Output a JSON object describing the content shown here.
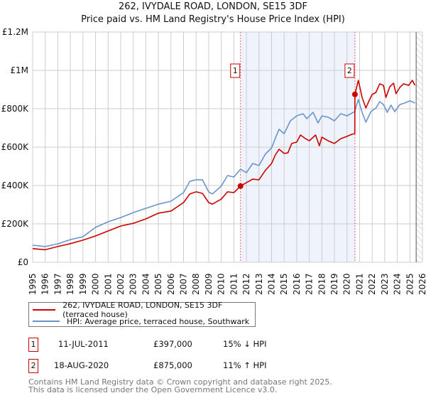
{
  "title": "262, IVYDALE ROAD, LONDON, SE15 3DF",
  "subtitle": "Price paid vs. HM Land Registry's House Price Index (HPI)",
  "colors": {
    "property": "#cc0000",
    "hpi": "#6b93cf",
    "shade": "#eef3fc",
    "grid": "#cccccc"
  },
  "chart_data": {
    "type": "line",
    "title": "262, IVYDALE ROAD, LONDON, SE15 3DF",
    "xlabel": "",
    "ylabel": "",
    "xlim": [
      1995,
      2026
    ],
    "ylim": [
      0,
      1200000
    ],
    "grid": true,
    "x_ticks": [
      "1995",
      "1996",
      "1997",
      "1998",
      "1999",
      "2000",
      "2001",
      "2002",
      "2003",
      "2004",
      "2005",
      "2006",
      "2007",
      "2008",
      "2009",
      "2010",
      "2011",
      "2012",
      "2013",
      "2014",
      "2015",
      "2016",
      "2017",
      "2018",
      "2019",
      "2020",
      "2021",
      "2022",
      "2023",
      "2024",
      "2025",
      "2026"
    ],
    "y_ticks": [
      {
        "v": 0,
        "label": "£0"
      },
      {
        "v": 200000,
        "label": "£200K"
      },
      {
        "v": 400000,
        "label": "£400K"
      },
      {
        "v": 600000,
        "label": "£600K"
      },
      {
        "v": 800000,
        "label": "£800K"
      },
      {
        "v": 1000000,
        "label": "£1M"
      },
      {
        "v": 1200000,
        "label": "£1.2M"
      }
    ],
    "shaded_range": [
      2011.53,
      2020.63
    ],
    "forecast_from": 2025.5,
    "series": [
      {
        "name": "262, IVYDALE ROAD, LONDON, SE15 3DF (terraced house)",
        "color": "#cc0000",
        "x": [
          1995,
          1996,
          1997,
          1998,
          1999,
          2000,
          2001,
          2002,
          2003,
          2004,
          2005,
          2006,
          2007,
          2007.5,
          2008,
          2008.5,
          2009,
          2009.3,
          2010,
          2010.5,
          2011,
          2011.53,
          2012,
          2012.5,
          2013,
          2013.5,
          2014,
          2014.3,
          2014.6,
          2015,
          2015.3,
          2015.6,
          2016,
          2016.3,
          2016.7,
          2017,
          2017.5,
          2017.8,
          2018,
          2018.5,
          2019,
          2019.5,
          2020,
          2020.4,
          2020.62,
          2020.63,
          2020.9,
          2021.2,
          2021.5,
          2021.8,
          2022,
          2022.3,
          2022.6,
          2022.9,
          2023.1,
          2023.4,
          2023.7,
          2023.9,
          2024.2,
          2024.5,
          2024.9,
          2025.2,
          2025.4
        ],
        "y": [
          71000,
          65000,
          82000,
          97000,
          115000,
          137000,
          163000,
          189000,
          203000,
          226000,
          256000,
          267000,
          311000,
          356000,
          367000,
          359000,
          311000,
          303000,
          329000,
          367000,
          363000,
          397000,
          415000,
          433000,
          430000,
          478000,
          515000,
          559000,
          589000,
          567000,
          570000,
          619000,
          626000,
          663000,
          644000,
          633000,
          663000,
          607000,
          652000,
          633000,
          619000,
          644000,
          656000,
          667000,
          670000,
          875000,
          948000,
          859000,
          804000,
          848000,
          874000,
          885000,
          930000,
          922000,
          859000,
          915000,
          933000,
          878000,
          911000,
          930000,
          922000,
          948000,
          922000
        ]
      },
      {
        "name": "HPI: Average price, terraced house, Southwark",
        "color": "#6b93cf",
        "x": [
          1995,
          1996,
          1997,
          1998,
          1999,
          2000,
          2001,
          2002,
          2003,
          2004,
          2005,
          2006,
          2007,
          2007.5,
          2008,
          2008.5,
          2009,
          2009.3,
          2010,
          2010.5,
          2011,
          2011.53,
          2012,
          2012.5,
          2013,
          2013.5,
          2014,
          2014.4,
          2014.6,
          2015,
          2015.5,
          2016,
          2016.5,
          2016.8,
          2017.3,
          2017.7,
          2018,
          2018.5,
          2019,
          2019.5,
          2020,
          2020.6,
          2020.9,
          2021.2,
          2021.5,
          2021.9,
          2022.3,
          2022.6,
          2022.9,
          2023.2,
          2023.5,
          2023.8,
          2024.2,
          2024.6,
          2025,
          2025.4
        ],
        "y": [
          89000,
          82000,
          96000,
          118000,
          133000,
          182000,
          211000,
          233000,
          259000,
          281000,
          303000,
          318000,
          363000,
          422000,
          430000,
          430000,
          367000,
          356000,
          397000,
          452000,
          444000,
          485000,
          467000,
          515000,
          504000,
          563000,
          596000,
          663000,
          693000,
          670000,
          737000,
          763000,
          774000,
          748000,
          781000,
          726000,
          763000,
          756000,
          737000,
          774000,
          763000,
          785000,
          848000,
          781000,
          730000,
          785000,
          804000,
          837000,
          822000,
          781000,
          819000,
          785000,
          822000,
          830000,
          841000,
          830000
        ]
      }
    ],
    "sales": [
      {
        "label": "1",
        "x": 2011.53,
        "y": 397000
      },
      {
        "label": "2",
        "x": 2020.63,
        "y": 875000
      }
    ]
  },
  "legend": {
    "property": "262, IVYDALE ROAD, LONDON, SE15 3DF (terraced house)",
    "hpi": "HPI: Average price, terraced house, Southwark"
  },
  "transactions": [
    {
      "num": "1",
      "date": "11-JUL-2011",
      "price": "£397,000",
      "hpi": "15% ↓ HPI"
    },
    {
      "num": "2",
      "date": "18-AUG-2020",
      "price": "£875,000",
      "hpi": "11% ↑ HPI"
    }
  ],
  "footer": {
    "line1": "Contains HM Land Registry data © Crown copyright and database right 2025.",
    "line2": "This data is licensed under the Open Government Licence v3.0."
  }
}
